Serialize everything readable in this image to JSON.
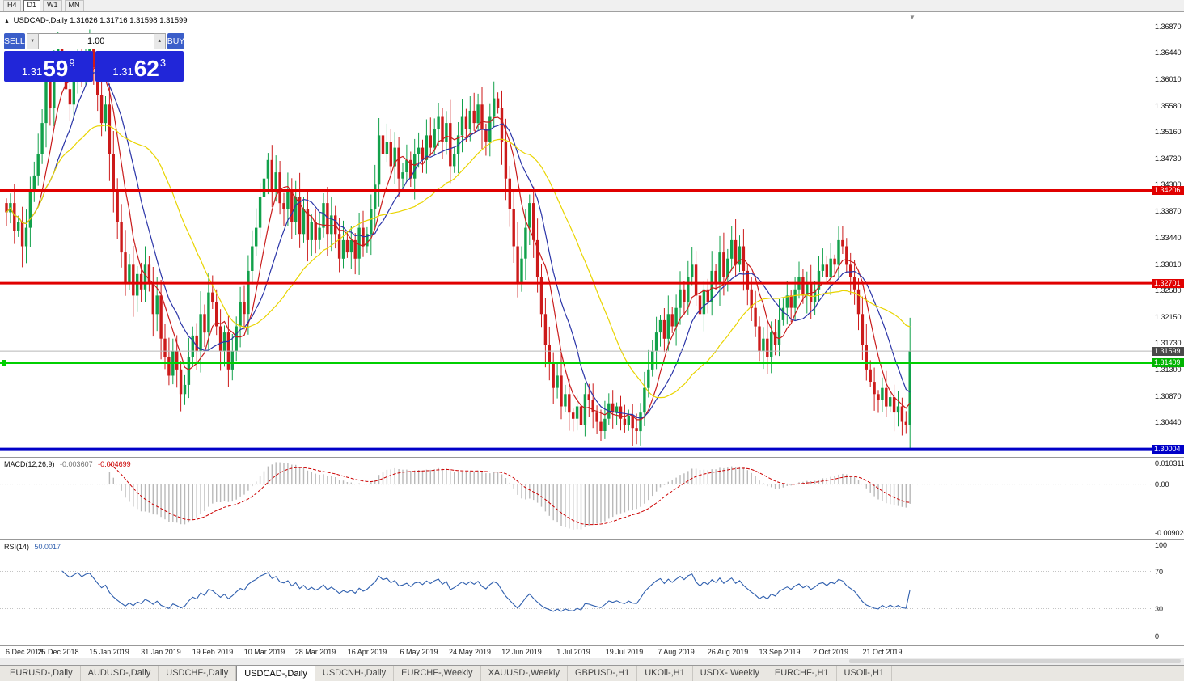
{
  "toolbar": {
    "timeframes": [
      "H4",
      "D1",
      "W1",
      "MN"
    ],
    "active": "D1"
  },
  "chart": {
    "title_arrow": "▲",
    "symbol_title": "USDCAD-,Daily",
    "ohlc": "1.31626 1.31716 1.31598 1.31599",
    "shift_marker": "▼",
    "trade_panel": {
      "sell_label": "SELL",
      "buy_label": "BUY",
      "volume": "1.00",
      "vol_down_icon": "▼",
      "vol_up_icon": "▲",
      "button_color": "#3b5ec9",
      "price_box_color": "#2126d8",
      "sell_price": {
        "prefix": "1.31",
        "big": "59",
        "sup": "9"
      },
      "buy_price": {
        "prefix": "1.31",
        "big": "62",
        "sup": "3"
      }
    },
    "price_axis_labels": [
      "1.36870",
      "1.36440",
      "1.36010",
      "1.35580",
      "1.35160",
      "1.34730",
      "1.34300",
      "1.33870",
      "1.33440",
      "1.33010",
      "1.32580",
      "1.32150",
      "1.31730",
      "1.31300",
      "1.30870",
      "1.30440"
    ],
    "hlines": [
      {
        "price": 1.34206,
        "label": "1.34206",
        "color": "#e00000",
        "label_bg": "#e00000",
        "width": 3
      },
      {
        "price": 1.32701,
        "label": "1.32701",
        "color": "#e00000",
        "label_bg": "#e00000",
        "width": 3
      },
      {
        "price": 1.31409,
        "label": "1.31409",
        "color": "#00d000",
        "label_bg": "#00b400",
        "width": 3,
        "marker_left": true
      },
      {
        "price": 1.30004,
        "label": "1.30004",
        "color": "#0000c8",
        "label_bg": "#0000c8",
        "width": 4
      }
    ],
    "current_price": {
      "price": 1.31599,
      "label": "1.31599",
      "line_color": "#b8b8b8",
      "label_bg": "#4a4a4a"
    },
    "macd": {
      "name": "MACD(12,26,9)",
      "value": "-0.003607",
      "signal_value": "-0.004699",
      "fast": 12,
      "slow": 26,
      "signal": 9,
      "axis": [
        "0.010311",
        "0.00",
        "-0.0090203"
      ],
      "histogram_color": "#b9b9b9",
      "signal_color": "#cc0000"
    },
    "rsi": {
      "name": "RSI(14)",
      "value": "50.0017",
      "period": 14,
      "axis": [
        "100",
        "70",
        "30",
        "0"
      ],
      "levels": [
        70,
        30
      ],
      "color": "#2f5fae"
    },
    "chart_data": {
      "type": "candlestick",
      "symbol": "USDCAD",
      "timeframe": "Daily",
      "ohlc_current": {
        "open": 1.31626,
        "high": 1.31716,
        "low": 1.31598,
        "close": 1.31599
      },
      "price_range": {
        "min": 1.2988,
        "max": 1.371
      },
      "up_color": "#12a14b",
      "down_color": "#cc1a1a",
      "moving_averages": [
        {
          "period": 7,
          "color": "#c91c1c"
        },
        {
          "period": 13,
          "color": "#2b35a8"
        },
        {
          "period": 30,
          "color": "#e9d400"
        }
      ],
      "x_labels": [
        "6 Dec 2018",
        "25 Dec 2018",
        "15 Jan 2019",
        "31 Jan 2019",
        "19 Feb 2019",
        "10 Mar 2019",
        "28 Mar 2019",
        "16 Apr 2019",
        "6 May 2019",
        "24 May 2019",
        "12 Jun 2019",
        "1 Jul 2019",
        "19 Jul 2019",
        "7 Aug 2019",
        "26 Aug 2019",
        "13 Sep 2019",
        "2 Oct 2019",
        "21 Oct 2019"
      ],
      "x_label_indices": [
        0,
        13,
        26,
        39,
        52,
        65,
        78,
        91,
        104,
        117,
        130,
        143,
        156,
        169,
        182,
        195,
        208,
        221
      ],
      "closes": [
        1.3385,
        1.34,
        1.3355,
        1.337,
        1.333,
        1.336,
        1.342,
        1.3445,
        1.348,
        1.353,
        1.36,
        1.3555,
        1.362,
        1.365,
        1.3615,
        1.3585,
        1.356,
        1.36,
        1.364,
        1.3605,
        1.3645,
        1.366,
        1.362,
        1.3575,
        1.353,
        1.356,
        1.348,
        1.342,
        1.337,
        1.332,
        1.327,
        1.33,
        1.325,
        1.3285,
        1.326,
        1.33,
        1.327,
        1.322,
        1.325,
        1.318,
        1.315,
        1.312,
        1.316,
        1.313,
        1.309,
        1.3105,
        1.315,
        1.3185,
        1.316,
        1.322,
        1.319,
        1.3255,
        1.324,
        1.32,
        1.316,
        1.319,
        1.313,
        1.316,
        1.32,
        1.324,
        1.322,
        1.329,
        1.333,
        1.336,
        1.341,
        1.344,
        1.347,
        1.342,
        1.345,
        1.34,
        1.339,
        1.342,
        1.337,
        1.341,
        1.335,
        1.339,
        1.334,
        1.337,
        1.334,
        1.336,
        1.34,
        1.335,
        1.338,
        1.335,
        1.331,
        1.334,
        1.332,
        1.334,
        1.331,
        1.336,
        1.333,
        1.335,
        1.339,
        1.343,
        1.351,
        1.348,
        1.35,
        1.346,
        1.349,
        1.344,
        1.345,
        1.347,
        1.344,
        1.348,
        1.349,
        1.347,
        1.351,
        1.349,
        1.352,
        1.354,
        1.35,
        1.353,
        1.346,
        1.348,
        1.351,
        1.354,
        1.352,
        1.355,
        1.353,
        1.356,
        1.352,
        1.35,
        1.354,
        1.357,
        1.3555,
        1.35,
        1.344,
        1.339,
        1.333,
        1.327,
        1.331,
        1.336,
        1.34,
        1.334,
        1.328,
        1.322,
        1.317,
        1.314,
        1.31,
        1.312,
        1.307,
        1.309,
        1.306,
        1.305,
        1.307,
        1.304,
        1.309,
        1.308,
        1.306,
        1.3045,
        1.303,
        1.305,
        1.3075,
        1.306,
        1.307,
        1.305,
        1.304,
        1.3055,
        1.3035,
        1.303,
        1.306,
        1.31,
        1.313,
        1.316,
        1.319,
        1.321,
        1.318,
        1.322,
        1.32,
        1.323,
        1.326,
        1.324,
        1.328,
        1.33,
        1.325,
        1.322,
        1.326,
        1.324,
        1.329,
        1.327,
        1.332,
        1.328,
        1.331,
        1.334,
        1.33,
        1.333,
        1.329,
        1.326,
        1.323,
        1.32,
        1.316,
        1.318,
        1.315,
        1.319,
        1.317,
        1.321,
        1.323,
        1.325,
        1.323,
        1.326,
        1.328,
        1.325,
        1.327,
        1.324,
        1.326,
        1.329,
        1.33,
        1.328,
        1.331,
        1.33,
        1.334,
        1.333,
        1.33,
        1.328,
        1.326,
        1.322,
        1.317,
        1.313,
        1.311,
        1.309,
        1.308,
        1.31,
        1.307,
        1.3085,
        1.306,
        1.307,
        1.3045,
        1.304,
        1.31599
      ]
    }
  },
  "tabs": {
    "items": [
      "EURUSD-,Daily",
      "AUDUSD-,Daily",
      "USDCHF-,Daily",
      "USDCAD-,Daily",
      "USDCNH-,Daily",
      "EURCHF-,Weekly",
      "XAUUSD-,Weekly",
      "GBPUSD-,H1",
      "UKOil-,H1",
      "USDX-,Weekly",
      "EURCHF-,H1",
      "USOil-,H1"
    ],
    "active": "USDCAD-,Daily"
  }
}
